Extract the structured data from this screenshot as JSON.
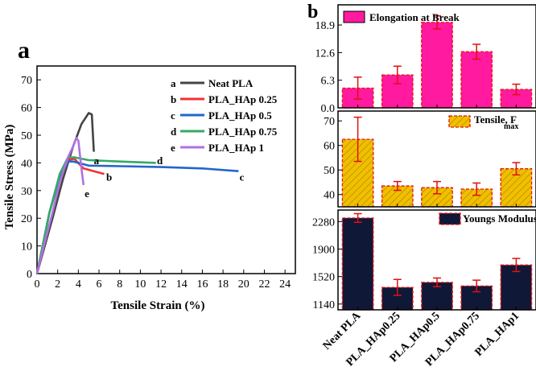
{
  "panel_a": {
    "label": "a",
    "chart_data": {
      "type": "line",
      "xlabel": "Tensile Strain (%)",
      "ylabel": "Tensile Stress (MPa)",
      "xlim": [
        0,
        25
      ],
      "ylim": [
        0,
        75
      ],
      "xticks": [
        "0",
        "2",
        "4",
        "6",
        "8",
        "10",
        "12",
        "14",
        "16",
        "18",
        "20",
        "22",
        "24"
      ],
      "yticks": [
        "0",
        "10",
        "20",
        "30",
        "40",
        "50",
        "60",
        "70"
      ],
      "series": [
        {
          "letter": "a",
          "name": "Neat PLA",
          "color": "#444444",
          "points": [
            [
              0,
              0
            ],
            [
              1.5,
              20
            ],
            [
              2.5,
              34
            ],
            [
              3.5,
              46
            ],
            [
              4.3,
              54
            ],
            [
              5.0,
              58
            ],
            [
              5.3,
              57.5
            ],
            [
              5.5,
              44
            ]
          ],
          "curve_label_at": [
            5.5,
            41
          ]
        },
        {
          "letter": "b",
          "name": "PLA_HAp 0.25",
          "color": "#ee3333",
          "points": [
            [
              0,
              0
            ],
            [
              1.2,
              22
            ],
            [
              2.2,
              35
            ],
            [
              3.0,
              41
            ],
            [
              3.6,
              41.5
            ],
            [
              4.5,
              38
            ],
            [
              5.5,
              37
            ],
            [
              6.5,
              36
            ]
          ],
          "curve_label_at": [
            6.7,
            35
          ]
        },
        {
          "letter": "c",
          "name": "PLA_HAp 0.5",
          "color": "#2266cc",
          "points": [
            [
              0,
              0
            ],
            [
              1.2,
              22
            ],
            [
              2.2,
              35
            ],
            [
              3.0,
              40.5
            ],
            [
              3.5,
              40.5
            ],
            [
              5,
              39
            ],
            [
              8,
              38.8
            ],
            [
              12,
              38.5
            ],
            [
              16,
              38
            ],
            [
              19.5,
              37
            ]
          ],
          "curve_label_at": [
            19.6,
            35
          ]
        },
        {
          "letter": "d",
          "name": "PLA_HAp 0.75",
          "color": "#33aa66",
          "points": [
            [
              0,
              0
            ],
            [
              1.2,
              22
            ],
            [
              2.2,
              36
            ],
            [
              3.0,
              42
            ],
            [
              3.6,
              42
            ],
            [
              5,
              41
            ],
            [
              8,
              40.5
            ],
            [
              11.5,
              40
            ]
          ],
          "curve_label_at": [
            11.6,
            41
          ]
        },
        {
          "letter": "e",
          "name": "PLA_HAp 1",
          "color": "#b070e0",
          "points": [
            [
              0,
              0
            ],
            [
              0.8,
              12
            ],
            [
              1.5,
              22
            ],
            [
              2.2,
              33
            ],
            [
              3.0,
              42
            ],
            [
              3.5,
              46
            ],
            [
              3.8,
              49
            ],
            [
              4.0,
              48
            ],
            [
              4.3,
              38
            ],
            [
              4.5,
              32
            ]
          ],
          "curve_label_at": [
            4.6,
            29
          ]
        }
      ]
    }
  },
  "panel_b": {
    "label": "b",
    "chart_data": [
      {
        "type": "bar",
        "legend": "Elongation at Break",
        "fill": "#ff1aa0",
        "hatched": false,
        "yticks": [
          "0.0",
          "6.3",
          "12.6",
          "18.9"
        ],
        "ylim": [
          0,
          23.5
        ],
        "categories": [
          "Neat PLA",
          "PLA_HAp0.25",
          "PLA_HAp0.5",
          "PLA_HAp0.75",
          "PLA_HAp1"
        ],
        "values": [
          4.5,
          7.5,
          19.5,
          12.8,
          4.2
        ],
        "errors": [
          2.5,
          2.0,
          1.5,
          1.7,
          1.2
        ]
      },
      {
        "type": "bar",
        "legend_main": "Tensile, F",
        "legend_sub": "max",
        "fill": "#f0c000",
        "hatched": true,
        "yticks": [
          "40",
          "50",
          "60",
          "70"
        ],
        "ylim": [
          35,
          74
        ],
        "categories": [
          "Neat PLA",
          "PLA_HAp0.25",
          "PLA_HAp0.5",
          "PLA_HAp0.75",
          "PLA_HAp1"
        ],
        "values": [
          62.5,
          43.5,
          42.8,
          42.2,
          50.5
        ],
        "errors": [
          9,
          1.8,
          2.5,
          2.5,
          2.5
        ]
      },
      {
        "type": "bar",
        "legend": "Youngs Modulus",
        "fill": "#101838",
        "hatched": false,
        "yticks": [
          "1140",
          "1520",
          "1900",
          "2280"
        ],
        "ylim": [
          1060,
          2440
        ],
        "categories": [
          "Neat PLA",
          "PLA_HAp0.25",
          "PLA_HAp0.5",
          "PLA_HAp0.75",
          "PLA_HAp1"
        ],
        "values": [
          2330,
          1370,
          1440,
          1390,
          1680
        ],
        "errors": [
          60,
          110,
          60,
          80,
          90
        ]
      }
    ],
    "x_tick_labels": [
      "Neat PLA",
      "PLA_HAp0.25",
      "PLA_HAp0.5",
      "PLA_HAp0.75",
      "PLA_HAp1"
    ]
  }
}
